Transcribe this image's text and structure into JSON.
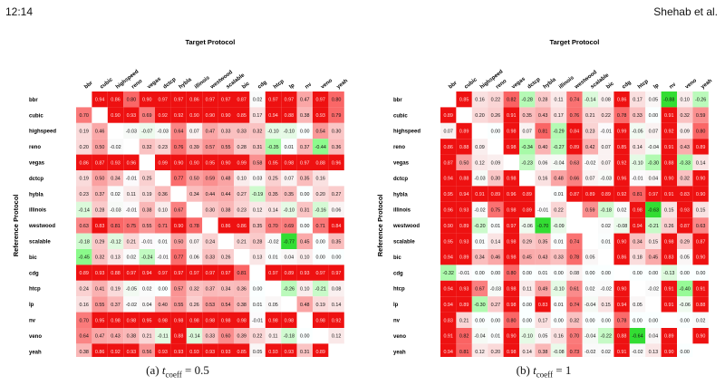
{
  "header": {
    "page_number": "12:14",
    "authors": "Shehab et al."
  },
  "figure_a": {
    "caption_label": "(a)",
    "caption_symbol": "t",
    "caption_subscript": "coeff",
    "caption_value": "= 0.5"
  },
  "figure_b": {
    "caption_label": "(b)",
    "caption_symbol": "t",
    "caption_subscript": "coeff",
    "caption_value": "= 1"
  },
  "chart_data": [
    {
      "type": "heatmap",
      "title": "Target Protocol",
      "ylabel": "Reference Protocol",
      "labels": [
        "bbr",
        "cubic",
        "highspeed",
        "reno",
        "vegas",
        "dctcp",
        "hybla",
        "illinois",
        "westwood",
        "scalable",
        "bic",
        "cdg",
        "htcp",
        "lp",
        "nv",
        "veno",
        "yeah"
      ],
      "values": [
        [
          null,
          0.94,
          0.86,
          0.8,
          0.9,
          0.97,
          0.97,
          0.86,
          0.97,
          0.97,
          0.87,
          0.02,
          0.97,
          0.97,
          0.47,
          0.97,
          0.8
        ],
        [
          0.7,
          null,
          0.9,
          0.93,
          0.69,
          0.92,
          0.92,
          0.9,
          0.9,
          0.9,
          0.85,
          0.17,
          0.94,
          0.88,
          0.38,
          0.93,
          0.79
        ],
        [
          0.19,
          0.46,
          null,
          -0.03,
          -0.07,
          -0.03,
          0.64,
          0.07,
          0.47,
          0.33,
          0.33,
          0.32,
          -0.1,
          -0.1,
          0.0,
          0.54,
          0.3
        ],
        [
          0.2,
          0.5,
          -0.02,
          null,
          0.32,
          0.23,
          0.76,
          0.39,
          0.57,
          0.55,
          0.28,
          0.31,
          -0.35,
          0.01,
          0.37,
          -0.44,
          0.36
        ],
        [
          0.86,
          0.87,
          0.93,
          0.96,
          null,
          0.99,
          0.9,
          0.9,
          0.95,
          0.9,
          0.99,
          0.58,
          0.95,
          0.98,
          0.97,
          0.88,
          0.96
        ],
        [
          0.19,
          0.5,
          0.34,
          -0.01,
          0.25,
          null,
          0.77,
          0.5,
          0.59,
          0.48,
          0.1,
          0.03,
          0.25,
          0.07,
          0.35,
          0.16,
          null
        ],
        [
          0.23,
          0.37,
          0.02,
          0.11,
          0.19,
          0.36,
          null,
          0.34,
          0.44,
          0.44,
          0.27,
          -0.19,
          0.35,
          0.35,
          0.0,
          0.2,
          0.27
        ],
        [
          -0.14,
          0.28,
          -0.03,
          -0.01,
          0.38,
          0.1,
          0.67,
          null,
          0.3,
          0.38,
          0.23,
          0.12,
          0.14,
          -0.1,
          0.31,
          -0.16,
          0.06
        ],
        [
          0.63,
          0.83,
          0.81,
          0.75,
          0.55,
          0.71,
          0.9,
          0.78,
          null,
          0.86,
          0.86,
          0.35,
          0.7,
          0.69,
          0.0,
          0.71,
          0.84
        ],
        [
          -0.18,
          0.29,
          -0.12,
          0.21,
          -0.01,
          0.01,
          0.5,
          0.07,
          0.24,
          null,
          0.21,
          0.28,
          -0.02,
          -0.77,
          0.45,
          0.0,
          0.35
        ],
        [
          -0.45,
          0.32,
          0.13,
          0.02,
          -0.24,
          -0.01,
          0.77,
          0.06,
          0.33,
          0.26,
          null,
          0.13,
          0.01,
          0.04,
          0.1,
          0.0,
          0.0
        ],
        [
          0.89,
          0.93,
          0.88,
          0.97,
          0.94,
          0.97,
          0.97,
          0.97,
          0.97,
          0.97,
          0.81,
          null,
          0.97,
          0.89,
          0.93,
          0.97,
          0.97
        ],
        [
          0.24,
          0.41,
          0.19,
          -0.05,
          0.02,
          0.0,
          0.57,
          0.32,
          0.37,
          0.34,
          0.36,
          0.0,
          null,
          -0.26,
          0.1,
          -0.21,
          0.08
        ],
        [
          0.16,
          0.55,
          0.37,
          -0.02,
          0.04,
          0.4,
          0.55,
          0.26,
          0.53,
          0.54,
          0.38,
          0.01,
          0.05,
          null,
          0.48,
          0.19,
          0.14
        ],
        [
          0.7,
          0.95,
          0.98,
          0.98,
          0.95,
          0.98,
          0.98,
          0.98,
          0.98,
          0.98,
          0.98,
          -0.01,
          0.98,
          0.98,
          null,
          0.98,
          0.92
        ],
        [
          0.64,
          0.47,
          0.43,
          0.38,
          0.21,
          -0.11,
          0.88,
          -0.14,
          0.33,
          0.6,
          0.39,
          0.22,
          0.11,
          -0.18,
          0.0,
          null,
          0.12
        ],
        [
          0.38,
          0.86,
          0.92,
          0.93,
          0.56,
          0.93,
          0.93,
          0.93,
          0.93,
          0.93,
          0.85,
          0.05,
          0.93,
          0.93,
          0.31,
          0.89,
          null
        ]
      ]
    },
    {
      "type": "heatmap",
      "title": "Target Protocol",
      "ylabel": "Reference Protocol",
      "labels": [
        "bbr",
        "cubic",
        "highspeed",
        "reno",
        "vegas",
        "dctcp",
        "hybla",
        "illinois",
        "westwood",
        "scalable",
        "bic",
        "cdg",
        "htcp",
        "lp",
        "nv",
        "veno",
        "yeah"
      ],
      "values": [
        [
          null,
          0.85,
          0.16,
          0.22,
          0.82,
          -0.28,
          0.28,
          0.11,
          0.74,
          -0.14,
          0.08,
          0.86,
          0.17,
          0.05,
          -0.88,
          0.1,
          -0.26
        ],
        [
          0.89,
          null,
          0.2,
          0.26,
          0.91,
          0.35,
          0.43,
          0.17,
          0.76,
          0.21,
          0.22,
          0.78,
          0.33,
          0.0,
          0.91,
          0.32,
          0.59
        ],
        [
          0.07,
          0.89,
          null,
          0.0,
          0.98,
          0.07,
          0.81,
          -0.29,
          0.84,
          0.23,
          -0.01,
          0.99,
          -0.05,
          0.07,
          0.92,
          0.09,
          0.8
        ],
        [
          0.86,
          0.88,
          0.09,
          null,
          0.98,
          -0.34,
          0.4,
          -0.27,
          0.89,
          0.42,
          0.07,
          0.85,
          0.14,
          -0.04,
          0.91,
          0.43,
          0.89
        ],
        [
          0.87,
          0.5,
          0.12,
          0.09,
          null,
          -0.23,
          0.06,
          -0.04,
          0.63,
          -0.02,
          0.07,
          0.92,
          -0.1,
          -0.3,
          0.88,
          -0.33,
          0.14
        ],
        [
          0.94,
          0.88,
          -0.03,
          0.3,
          0.98,
          null,
          0.16,
          0.48,
          0.66,
          0.07,
          -0.03,
          0.96,
          -0.01,
          0.04,
          0.9,
          0.32,
          0.9
        ],
        [
          0.95,
          0.94,
          0.91,
          0.89,
          0.96,
          0.89,
          null,
          0.01,
          0.87,
          0.89,
          0.89,
          0.92,
          0.81,
          0.97,
          0.91,
          0.83,
          0.9
        ],
        [
          0.96,
          0.93,
          -0.02,
          0.75,
          0.98,
          0.89,
          -0.01,
          0.22,
          null,
          0.59,
          -0.18,
          0.02,
          0.98,
          -0.63,
          0.15,
          0.93,
          0.15
        ],
        [
          0.9,
          0.89,
          -0.2,
          0.01,
          0.97,
          -0.06,
          -0.7,
          -0.09,
          null,
          null,
          0.02,
          -0.08,
          0.94,
          -0.21,
          0.26,
          0.87,
          0.63
        ],
        [
          0.95,
          0.93,
          0.01,
          0.14,
          0.98,
          0.29,
          0.35,
          0.01,
          0.74,
          null,
          0.01,
          0.9,
          0.34,
          0.15,
          0.98,
          0.29,
          0.87
        ],
        [
          0.94,
          0.89,
          0.34,
          0.46,
          0.98,
          0.45,
          0.43,
          0.33,
          0.78,
          0.05,
          null,
          0.86,
          0.18,
          0.45,
          0.83,
          0.05,
          0.9
        ],
        [
          -0.32,
          -0.01,
          0.0,
          0.0,
          0.8,
          0.0,
          0.01,
          0.0,
          0.08,
          0.0,
          0.0,
          null,
          0.0,
          0.0,
          -0.13,
          0.0,
          0.0
        ],
        [
          0.94,
          0.93,
          0.67,
          -0.03,
          0.98,
          0.11,
          0.49,
          -0.1,
          0.61,
          0.02,
          -0.02,
          0.9,
          null,
          -0.02,
          0.91,
          -0.4,
          0.91
        ],
        [
          0.94,
          0.89,
          -0.3,
          0.27,
          0.98,
          0.0,
          0.83,
          0.01,
          0.74,
          -0.04,
          0.15,
          0.94,
          0.05,
          null,
          0.91,
          -0.06,
          0.88
        ],
        [
          0.83,
          0.21,
          0.0,
          0.0,
          0.8,
          0.0,
          0.17,
          0.0,
          0.32,
          0.0,
          0.0,
          0.78,
          0.0,
          0.0,
          null,
          0.0,
          0.02
        ],
        [
          0.91,
          0.82,
          -0.04,
          0.01,
          0.9,
          -0.1,
          0.05,
          0.16,
          0.7,
          -0.04,
          -0.22,
          0.88,
          -0.64,
          0.04,
          0.89,
          null,
          0.9
        ],
        [
          0.94,
          0.81,
          0.12,
          0.2,
          0.98,
          0.14,
          0.38,
          -0.08,
          0.73,
          -0.02,
          0.02,
          0.91,
          -0.02,
          0.13,
          0.9,
          0.0,
          null
        ]
      ]
    }
  ]
}
